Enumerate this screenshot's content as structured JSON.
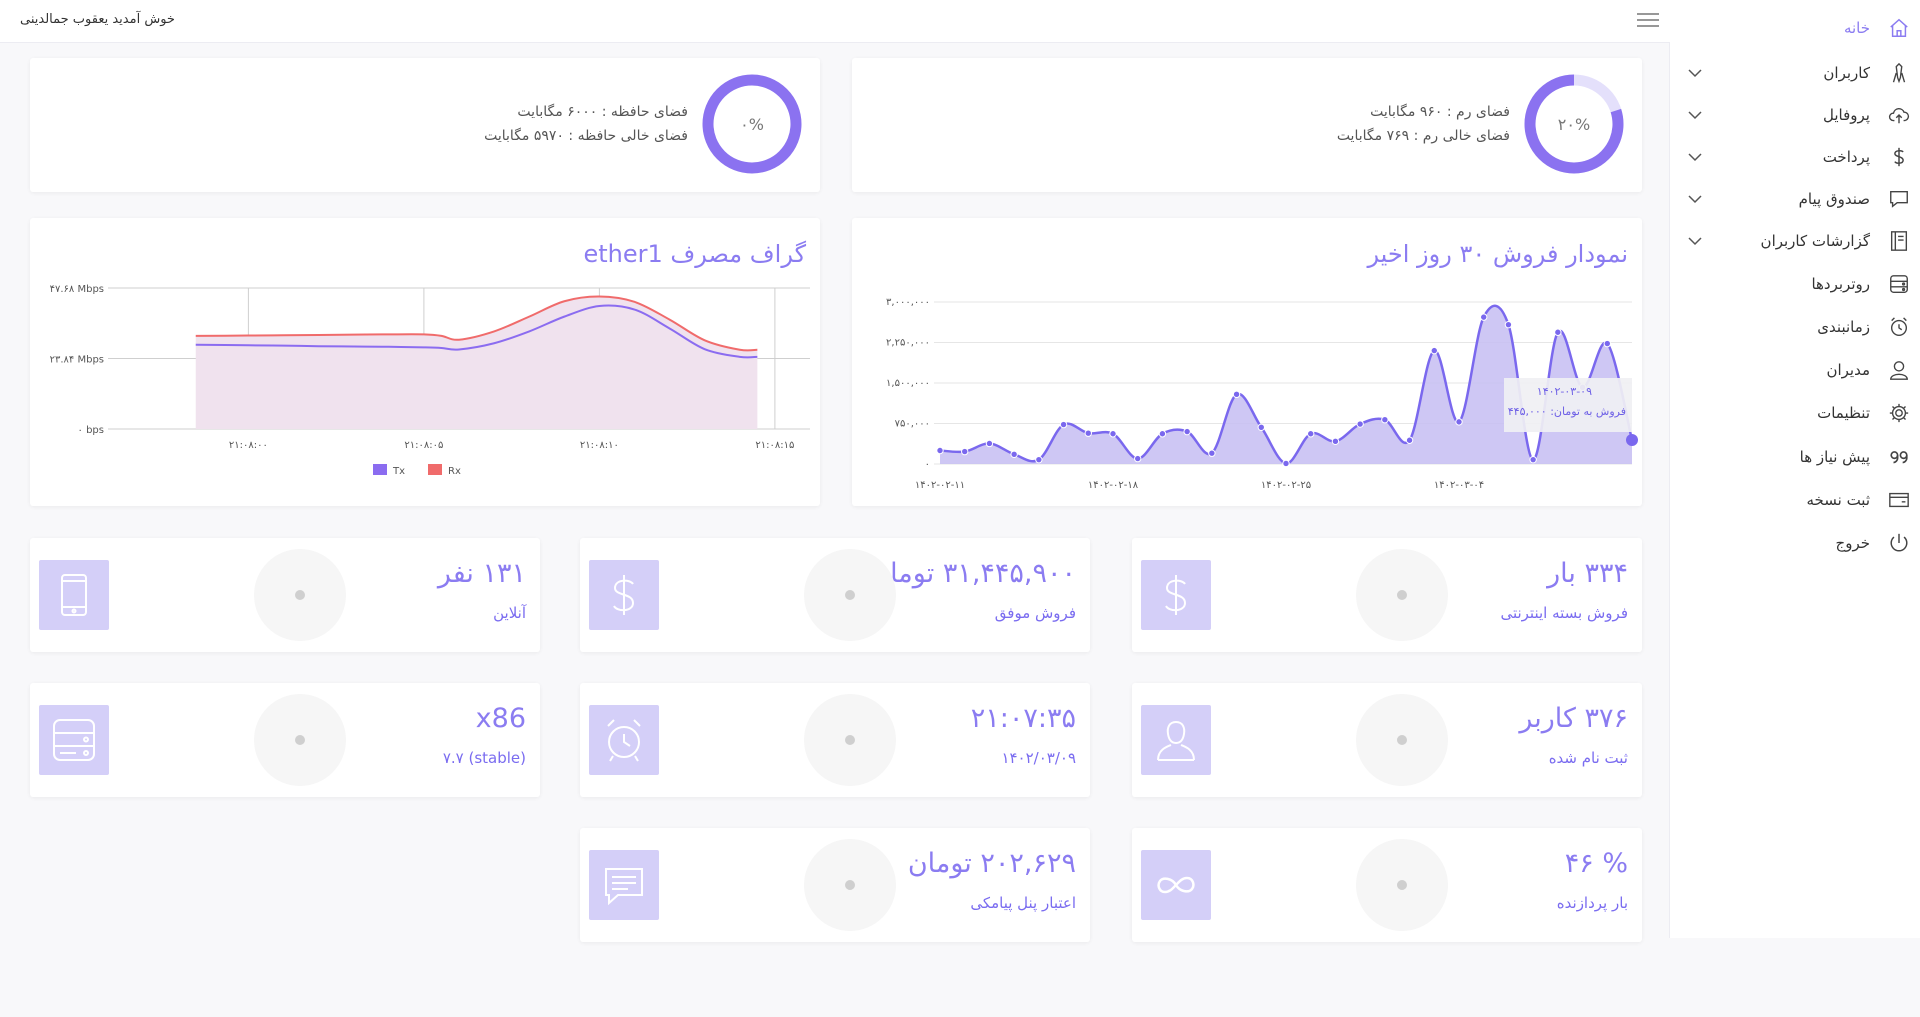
{
  "topbar": {
    "welcome": "خوش آمدید یعقوب جمالدینی"
  },
  "sidebar": {
    "items": [
      {
        "label": "خانه",
        "icon": "home-icon",
        "active": true,
        "has_submenu": false
      },
      {
        "label": "کاربران",
        "icon": "user-tie-icon",
        "has_submenu": true
      },
      {
        "label": "پروفایل",
        "icon": "cloud-upload-icon",
        "has_submenu": true
      },
      {
        "label": "پرداخت",
        "icon": "dollar-icon",
        "has_submenu": true
      },
      {
        "label": "صندوق پیام",
        "icon": "chat-icon",
        "has_submenu": true
      },
      {
        "label": "گزارشات کاربران",
        "icon": "book-icon",
        "has_submenu": true
      },
      {
        "label": "روتربردها",
        "icon": "server-icon",
        "has_submenu": false
      },
      {
        "label": "زمانبندی",
        "icon": "alarm-icon",
        "has_submenu": false
      },
      {
        "label": "مدیران",
        "icon": "user-icon",
        "has_submenu": false
      },
      {
        "label": "تنظیمات",
        "icon": "gear-icon",
        "has_submenu": false
      },
      {
        "label": "پیش نیاز ها",
        "icon": "quote-icon",
        "has_submenu": false
      },
      {
        "label": "ثبت نسخه",
        "icon": "card-icon",
        "has_submenu": false
      },
      {
        "label": "خروج",
        "icon": "power-icon",
        "has_submenu": false
      }
    ]
  },
  "ram_card": {
    "percent_label": "۲۰%",
    "percent": 20,
    "line1": "فضای رم : ۹۶۰ مگابایت",
    "line2": "فضای خالی رم : ۷۶۹ مگابایت"
  },
  "storage_card": {
    "percent_label": "۰%",
    "percent": 0,
    "line1": "فضای حافظه : ۶۰۰۰ مگابایت",
    "line2": "فضای خالی حافظه : ۵۹۷۰ مگابایت"
  },
  "colors": {
    "accent": "#8b7cf1",
    "tx": "#8b6cf0",
    "rx": "#f06b6b",
    "rx_fill": "#f0e2ee",
    "sales_fill": "#c5bdf2"
  },
  "sales_chart": {
    "title": "نمودار فروش ۳۰ روز اخیر",
    "tooltip": {
      "date": "۱۴۰۲-۰۳-۰۹",
      "label": "فروش به تومان: ۴۴۵,۰۰۰"
    },
    "chart_data": {
      "type": "area",
      "x_tick_labels": [
        "۱۴۰۲-۰۲-۱۱",
        "۱۴۰۲-۰۲-۱۸",
        "۱۴۰۲-۰۲-۲۵",
        "۱۴۰۲-۰۳-۰۴"
      ],
      "y_tick_labels": [
        "۰",
        "۷۵۰,۰۰۰",
        "۱,۵۰۰,۰۰۰",
        "۲,۲۵۰,۰۰۰",
        "۳,۰۰۰,۰۰۰"
      ],
      "ylim": [
        0,
        3000000
      ],
      "values": [
        250000,
        230000,
        380000,
        180000,
        80000,
        730000,
        570000,
        560000,
        100000,
        560000,
        600000,
        200000,
        1290000,
        680000,
        10000,
        560000,
        420000,
        740000,
        820000,
        440000,
        2100000,
        780000,
        2720000,
        2580000,
        80000,
        2440000,
        1420000,
        2230000,
        445000
      ]
    }
  },
  "traffic_chart": {
    "title": "گراف مصرف ether1",
    "legend": [
      "Tx",
      "Rx"
    ],
    "chart_data": {
      "type": "area",
      "x_tick_labels": [
        "۲۱:۰۸:۰۰",
        "۲۱:۰۸:۰۵",
        "۲۱:۰۸:۱۰",
        "۲۱:۰۸:۱۵"
      ],
      "y_tick_labels": [
        "۰ bps",
        "۲۳.۸۴ Mbps",
        "۴۷.۶۸ Mbps"
      ],
      "ylim_mbps": [
        0,
        47.68
      ],
      "x_seconds": [
        -1.5,
        0,
        1,
        2,
        3,
        4,
        5,
        5.5,
        6,
        7,
        8,
        9,
        10,
        11,
        12,
        13,
        14,
        14.5
      ],
      "series": [
        {
          "name": "Tx",
          "values_mbps": [
            28.5,
            28.3,
            28.2,
            28.0,
            27.9,
            27.8,
            27.6,
            27.4,
            26.9,
            29.0,
            33.0,
            38.0,
            41.6,
            40.4,
            34.0,
            27.0,
            24.4,
            24.4
          ]
        },
        {
          "name": "Rx",
          "values_mbps": [
            31.5,
            31.6,
            31.7,
            31.8,
            31.9,
            32.0,
            32.0,
            31.5,
            30.2,
            33.0,
            38.0,
            43.2,
            44.8,
            43.0,
            37.0,
            30.0,
            26.8,
            26.8
          ]
        }
      ]
    }
  },
  "stats": [
    {
      "value": "۳۳۴ بار",
      "label": "فروش بسته اینترنتی",
      "icon": "dollar-icon"
    },
    {
      "value": "۳۱,۴۴۵,۹۰۰ تومان",
      "label": "فروش موفق",
      "icon": "dollar-icon"
    },
    {
      "value": "۱۳۱ نفر",
      "label": "آنلاین",
      "icon": "mobile-icon"
    },
    {
      "value": "۳۷۶ کاربر",
      "label": "ثبت نام شده",
      "icon": "user-icon"
    },
    {
      "value": "۲۱:۰۷:۳۵",
      "label": "۱۴۰۲/۰۳/۰۹",
      "icon": "alarm-icon"
    },
    {
      "value": "x86",
      "label": "(stable) ۷.۷",
      "icon": "server-icon"
    },
    {
      "value": "% ۴۶",
      "label": "بار پردازنده",
      "icon": "infinity-icon"
    },
    {
      "value": "۲۰۲,۶۲۹ تومان",
      "label": "اعتبار پنل پیامکی",
      "icon": "message-icon"
    }
  ]
}
